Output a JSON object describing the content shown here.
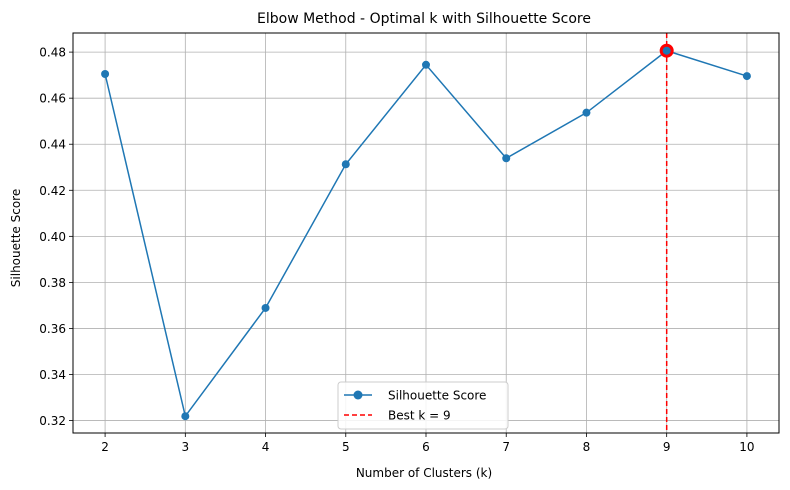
{
  "chart_data": {
    "type": "line",
    "title": "Elbow Method - Optimal k with Silhouette Score",
    "xlabel": "Number of Clusters (k)",
    "ylabel": "Silhouette Score",
    "x": [
      2,
      3,
      4,
      5,
      6,
      7,
      8,
      9,
      10
    ],
    "xlim": [
      1.6,
      10.4
    ],
    "ylim": [
      0.3146,
      0.4883
    ],
    "xticks": [
      "2",
      "3",
      "4",
      "5",
      "6",
      "7",
      "8",
      "9",
      "10"
    ],
    "yticks": [
      "0.32",
      "0.34",
      "0.36",
      "0.38",
      "0.40",
      "0.42",
      "0.44",
      "0.46",
      "0.48"
    ],
    "grid": true,
    "legend_position": "bottom-center",
    "series": [
      {
        "name": "Silhouette Score",
        "values": [
          0.4705,
          0.3219,
          0.3689,
          0.4313,
          0.4745,
          0.4339,
          0.4537,
          0.4806,
          0.4696
        ],
        "color": "#1f77b4",
        "marker": "circle"
      }
    ],
    "best_k": {
      "label": "Best k = 9",
      "x": 9,
      "y": 0.4806,
      "line_color": "#ff0000",
      "line_style": "dashed",
      "point_color": "#ff0000"
    }
  }
}
